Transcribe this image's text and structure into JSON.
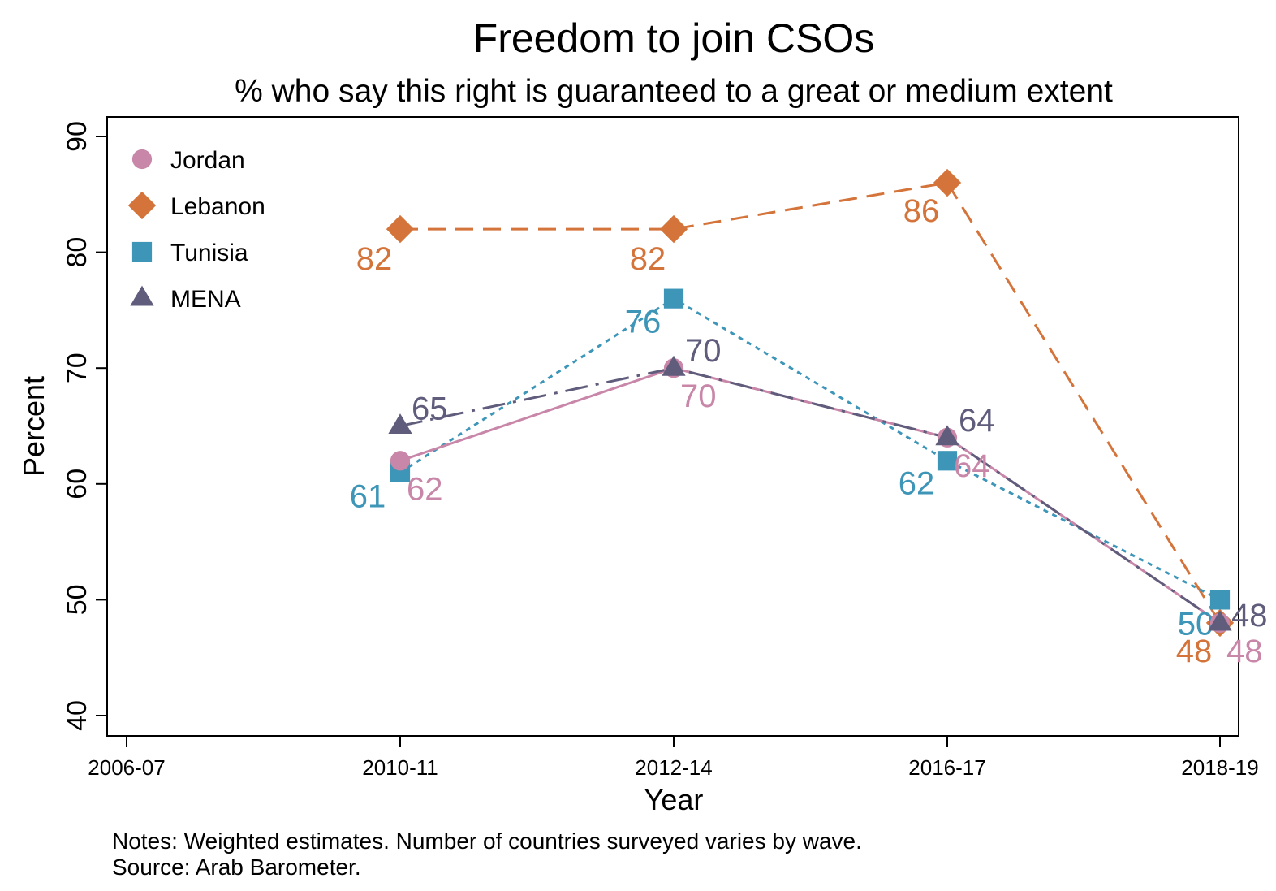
{
  "chart_data": {
    "type": "line",
    "title": "Freedom to join CSOs",
    "subtitle": "% who say this right is guaranteed to a great or medium extent",
    "xlabel": "Year",
    "ylabel": "Percent",
    "categories": [
      "2006-07",
      "2010-11",
      "2012-14",
      "2016-17",
      "2018-19"
    ],
    "ylim": [
      40,
      90
    ],
    "yticks": [
      40,
      50,
      60,
      70,
      80,
      90
    ],
    "grid": false,
    "legend_position": "top-left",
    "series": [
      {
        "name": "Jordan",
        "color": "#c886a8",
        "marker": "circle",
        "line": "solid",
        "values": [
          null,
          62,
          70,
          64,
          48
        ]
      },
      {
        "name": "Lebanon",
        "color": "#d4743a",
        "marker": "diamond",
        "line": "dashed",
        "values": [
          null,
          82,
          82,
          86,
          48
        ]
      },
      {
        "name": "Tunisia",
        "color": "#3d95b8",
        "marker": "square",
        "line": "dotted",
        "values": [
          null,
          61,
          76,
          62,
          50
        ]
      },
      {
        "name": "MENA",
        "color": "#5f5c7c",
        "marker": "triangle",
        "line": "dashdot",
        "values": [
          null,
          65,
          70,
          64,
          48
        ]
      }
    ]
  },
  "notes": {
    "line1": "Notes: Weighted estimates. Number of countries surveyed varies by wave.",
    "line2": "Source: Arab Barometer."
  }
}
